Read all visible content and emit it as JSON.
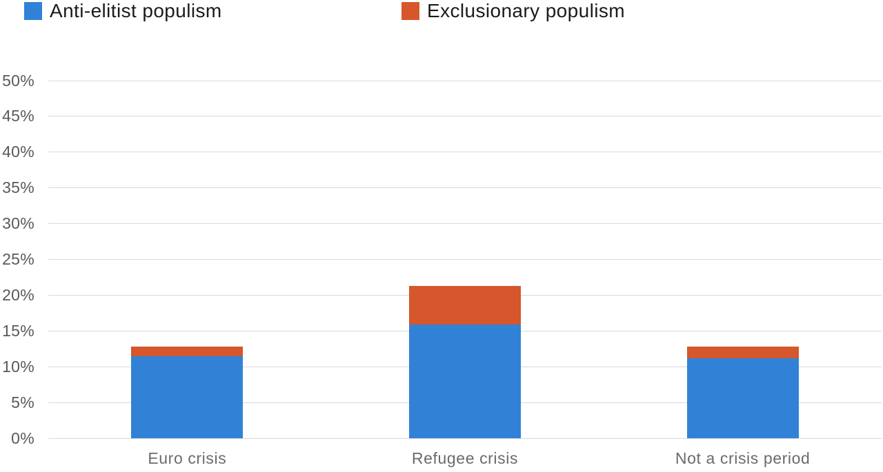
{
  "legend": [
    {
      "label": "Anti-elitist populism",
      "color": "#3182d6"
    },
    {
      "label": "Exclusionary populism",
      "color": "#d5572b"
    }
  ],
  "chart_data": {
    "type": "bar",
    "stacked": true,
    "title": "",
    "xlabel": "",
    "ylabel": "",
    "categories": [
      "Euro crisis",
      "Refugee crisis",
      "Not a crisis period"
    ],
    "series": [
      {
        "name": "Anti-elitist populism",
        "color": "#3182d6",
        "values": [
          11.5,
          15.9,
          11.2
        ]
      },
      {
        "name": "Exclusionary populism",
        "color": "#d5572b",
        "values": [
          1.3,
          5.4,
          1.6
        ]
      }
    ],
    "totals": [
      12.8,
      21.3,
      12.8
    ],
    "ylim": [
      0,
      50
    ],
    "y_tick_step": 5,
    "y_ticks": [
      "0%",
      "5%",
      "10%",
      "15%",
      "20%",
      "25%",
      "30%",
      "35%",
      "40%",
      "45%",
      "50%"
    ],
    "grid": true,
    "gridline_color": "#d9d9d9",
    "legend_position": "top"
  }
}
